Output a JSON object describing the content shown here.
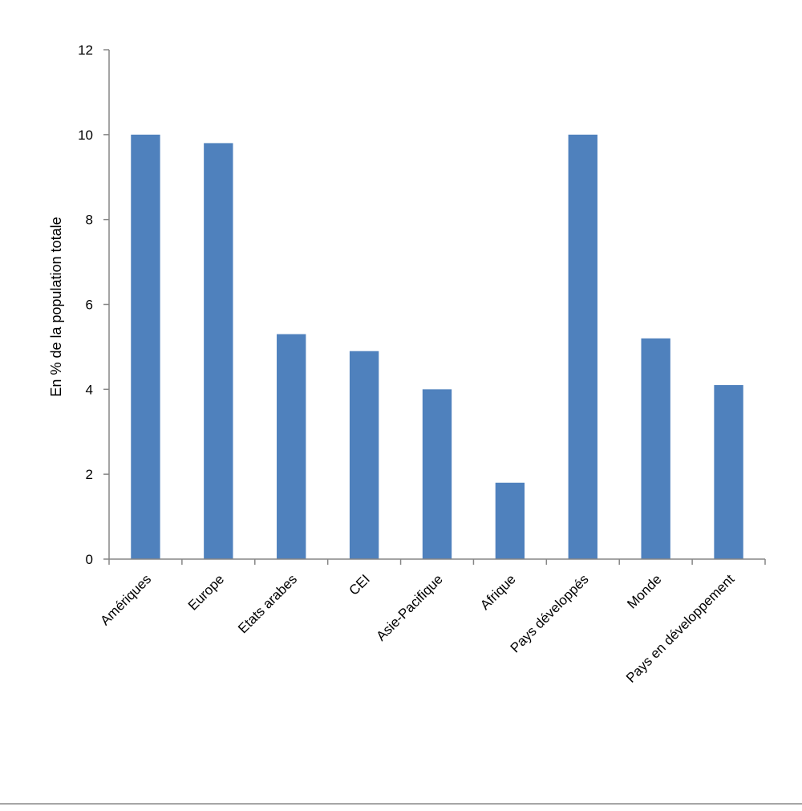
{
  "chart_data": {
    "type": "bar",
    "categories": [
      "Amériques",
      "Europe",
      "Etats arabes",
      "CEI",
      "Asie-Pacifique",
      "Afrique",
      "Pays développés",
      "Monde",
      "Pays en développement"
    ],
    "values": [
      10.0,
      9.8,
      5.3,
      4.9,
      4.0,
      1.8,
      10.0,
      5.2,
      4.1
    ],
    "title": "",
    "xlabel": "",
    "ylabel": "En % de la population totale",
    "ylim": [
      0,
      12
    ],
    "yticks": [
      "0",
      "2",
      "4",
      "6",
      "8",
      "10",
      "12"
    ],
    "grid": false,
    "legend": "none",
    "colors": {
      "bar": "#4f81bd",
      "axis": "#868686"
    }
  }
}
